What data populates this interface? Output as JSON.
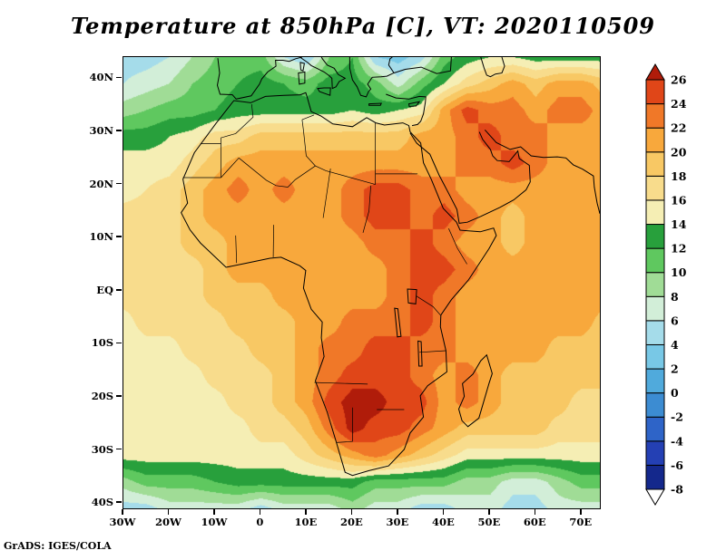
{
  "chart_data": {
    "type": "heatmap",
    "title": "Temperature at 850hPa [C], VT: 2020110509",
    "variable": "Temperature",
    "pressure_level": "850hPa",
    "units": "C",
    "valid_time": "2020110509",
    "credit": "GrADS: IGES/COLA",
    "lon_range": [
      -30,
      74
    ],
    "lat_range": [
      -41,
      44
    ],
    "x_ticks": [
      {
        "label": "30W",
        "lon": -30
      },
      {
        "label": "20W",
        "lon": -20
      },
      {
        "label": "10W",
        "lon": -10
      },
      {
        "label": "0",
        "lon": 0
      },
      {
        "label": "10E",
        "lon": 10
      },
      {
        "label": "20E",
        "lon": 20
      },
      {
        "label": "30E",
        "lon": 30
      },
      {
        "label": "40E",
        "lon": 40
      },
      {
        "label": "50E",
        "lon": 50
      },
      {
        "label": "60E",
        "lon": 60
      },
      {
        "label": "70E",
        "lon": 70
      }
    ],
    "y_ticks": [
      {
        "label": "40N",
        "lat": 40
      },
      {
        "label": "30N",
        "lat": 30
      },
      {
        "label": "20N",
        "lat": 20
      },
      {
        "label": "10N",
        "lat": 10
      },
      {
        "label": "EQ",
        "lat": 0
      },
      {
        "label": "10S",
        "lat": -10
      },
      {
        "label": "20S",
        "lat": -20
      },
      {
        "label": "30S",
        "lat": -30
      },
      {
        "label": "40S",
        "lat": -40
      }
    ],
    "levels": [
      -8,
      -6,
      -4,
      -2,
      0,
      2,
      4,
      6,
      8,
      10,
      12,
      14,
      16,
      18,
      20,
      22,
      24,
      26
    ],
    "colorbar": {
      "labels": [
        "26",
        "24",
        "22",
        "20",
        "18",
        "16",
        "14",
        "12",
        "10",
        "8",
        "6",
        "4",
        "2",
        "0",
        "-2",
        "-4",
        "-6",
        "-8"
      ],
      "band_colors": [
        "#14288c",
        "#2440b4",
        "#2e64c8",
        "#3c8cd2",
        "#50aadc",
        "#78c8e6",
        "#a5dcea",
        "#d2eed8",
        "#a0dc96",
        "#5fc85f",
        "#28a03c",
        "#f5eeb4",
        "#f8dc8c",
        "#f8c864",
        "#f8a83c",
        "#f07828",
        "#e04618"
      ],
      "over_color": "#b01c0a",
      "under_color": "#ffffff"
    },
    "grid": {
      "description": "Estimated 850hPa temperature (C) on a 5-degree grid, rows north-to-south",
      "lon_start": -30,
      "lon_step": 5,
      "lat_start": 44,
      "lat_step": -5,
      "values": [
        [
          5,
          5,
          6,
          8,
          10,
          11,
          11,
          6,
          4,
          10,
          12,
          4,
          3,
          5,
          11,
          13,
          14,
          14,
          13,
          13,
          13,
          13
        ],
        [
          6,
          7,
          8,
          10,
          11,
          12,
          13,
          12,
          11,
          13,
          13,
          11,
          7,
          11,
          14,
          17,
          19,
          21,
          19,
          21,
          21,
          19
        ],
        [
          9,
          10,
          11,
          11,
          12,
          13,
          13,
          13,
          13,
          13,
          14,
          13,
          14,
          15,
          21,
          25,
          23,
          23,
          21,
          23,
          23,
          21
        ],
        [
          13,
          13,
          14,
          15,
          17,
          17,
          19,
          19,
          19,
          19,
          19,
          19,
          19,
          21,
          21,
          23,
          25,
          23,
          23,
          21,
          21,
          21
        ],
        [
          15,
          15,
          15,
          17,
          19,
          21,
          21,
          21,
          21,
          21,
          21,
          21,
          21,
          21,
          21,
          23,
          23,
          25,
          23,
          21,
          21,
          21
        ],
        [
          15,
          16,
          17,
          19,
          21,
          23,
          21,
          23,
          21,
          21,
          23,
          25,
          25,
          23,
          23,
          21,
          21,
          21,
          21,
          21,
          21,
          21
        ],
        [
          17,
          17,
          17,
          19,
          21,
          21,
          21,
          21,
          21,
          21,
          23,
          25,
          25,
          23,
          25,
          23,
          21,
          19,
          21,
          21,
          21,
          21
        ],
        [
          17,
          17,
          17,
          19,
          19,
          21,
          21,
          21,
          21,
          21,
          21,
          23,
          23,
          25,
          23,
          21,
          21,
          19,
          21,
          21,
          21,
          21
        ],
        [
          17,
          17,
          17,
          17,
          19,
          21,
          21,
          21,
          21,
          21,
          21,
          21,
          23,
          25,
          25,
          23,
          21,
          21,
          21,
          21,
          21,
          21
        ],
        [
          17,
          17,
          17,
          17,
          19,
          19,
          19,
          21,
          21,
          21,
          21,
          21,
          23,
          25,
          23,
          21,
          21,
          21,
          21,
          21,
          21,
          21
        ],
        [
          15,
          17,
          17,
          17,
          17,
          19,
          19,
          19,
          21,
          21,
          23,
          23,
          23,
          25,
          23,
          21,
          21,
          21,
          21,
          21,
          21,
          19
        ],
        [
          15,
          15,
          15,
          17,
          17,
          17,
          19,
          19,
          21,
          23,
          23,
          25,
          25,
          23,
          23,
          21,
          21,
          21,
          21,
          19,
          19,
          19
        ],
        [
          15,
          15,
          15,
          15,
          17,
          17,
          17,
          19,
          21,
          23,
          25,
          25,
          25,
          23,
          21,
          23,
          21,
          19,
          19,
          19,
          19,
          19
        ],
        [
          15,
          15,
          15,
          15,
          15,
          17,
          17,
          19,
          21,
          25,
          27,
          27,
          25,
          25,
          21,
          23,
          21,
          19,
          19,
          19,
          17,
          17
        ],
        [
          15,
          15,
          15,
          15,
          15,
          15,
          17,
          17,
          19,
          23,
          27,
          25,
          25,
          23,
          21,
          19,
          19,
          19,
          19,
          17,
          17,
          17
        ],
        [
          15,
          15,
          15,
          15,
          15,
          15,
          15,
          15,
          17,
          19,
          21,
          23,
          21,
          19,
          17,
          15,
          15,
          15,
          15,
          15,
          15,
          15
        ],
        [
          9,
          11,
          11,
          11,
          12,
          13,
          13,
          13,
          13,
          13,
          13,
          11,
          11,
          11,
          11,
          9,
          9,
          7,
          7,
          9,
          11,
          11
        ],
        [
          5,
          5,
          7,
          7,
          7,
          7,
          5,
          7,
          7,
          7,
          9,
          7,
          7,
          5,
          5,
          7,
          7,
          5,
          5,
          7,
          7,
          7
        ]
      ]
    }
  }
}
